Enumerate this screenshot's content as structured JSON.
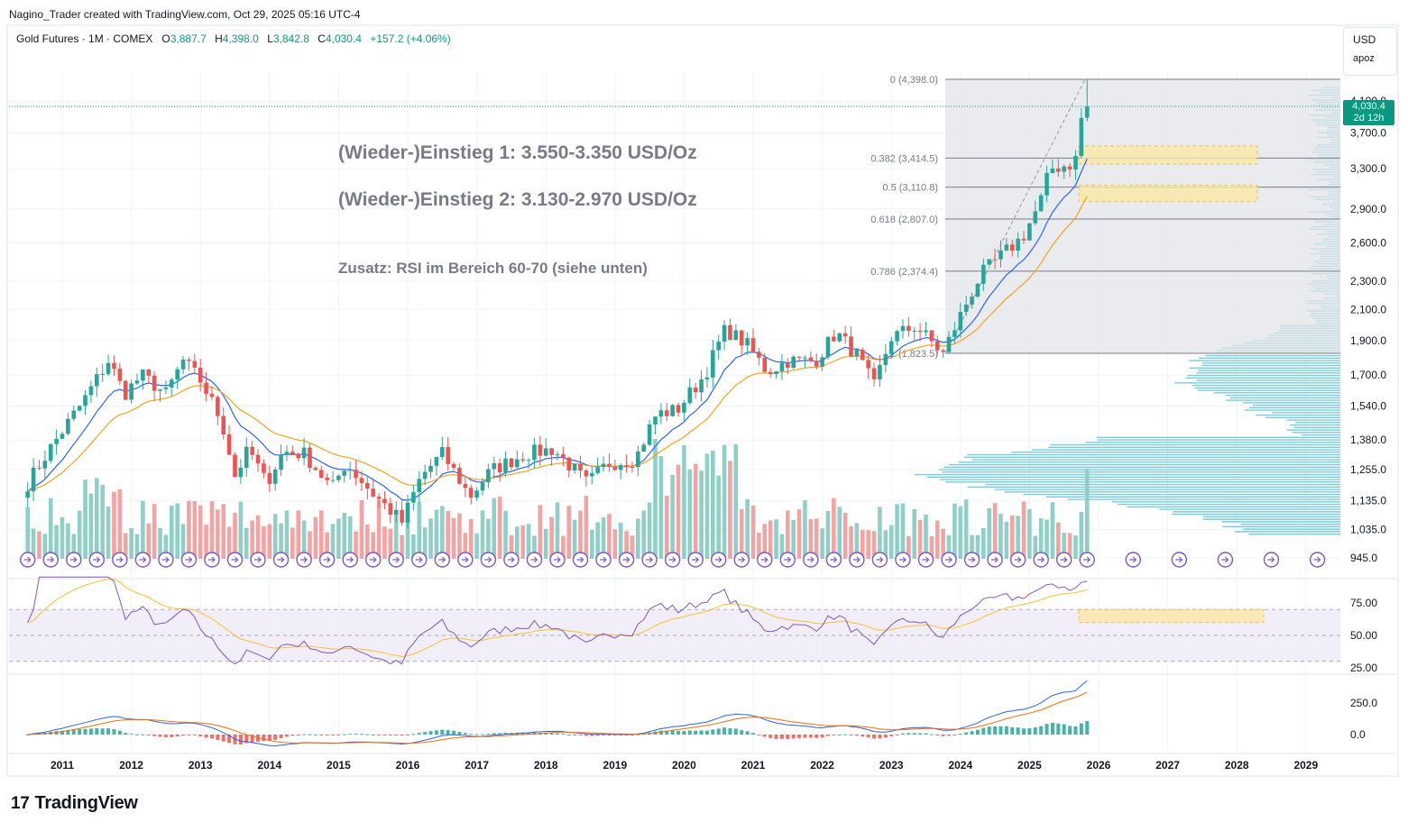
{
  "header": {
    "attribution": "Nagino_Trader created with TradingView.com, Oct 29, 2025 05:16 UTC-4",
    "symbol": "Gold Futures · 1M · COMEX",
    "o_label": "O",
    "o_value": "3,887.7",
    "h_label": "H",
    "h_value": "4,398.0",
    "l_label": "L",
    "l_value": "3,842.8",
    "c_label": "C",
    "c_value": "4,030.4",
    "change": "+157.2 (+4.06%)"
  },
  "price_scale": {
    "currency": "USD",
    "mode": "apoz",
    "last_price": "4,030.4",
    "countdown": "2d 12h"
  },
  "footer": {
    "brand": "TradingView"
  },
  "colors": {
    "up": "#26a69a",
    "down": "#ef5350",
    "volume_up": "#90cfc8",
    "volume_down": "#f4a3a3",
    "ema_fast": "#2962ff",
    "ema_slow": "#f7a21b",
    "volume_profile": "#5ec5d6",
    "rsi_line": "#7e57c2",
    "rsi_ma": "#fbc02d",
    "macd_line": "#2962ff",
    "signal_line": "#ff6d00",
    "zone_fill": "#fbe9a6",
    "zone_border": "#e8b83a"
  },
  "chart_data": [
    {
      "type": "candlestick",
      "title": "Gold Futures · 1M · COMEX",
      "timeframe": "1M",
      "x_axis_labels": [
        "2011",
        "2012",
        "2013",
        "2014",
        "2015",
        "2016",
        "2017",
        "2018",
        "2019",
        "2020",
        "2021",
        "2022",
        "2023",
        "2024",
        "2025",
        "2026",
        "2027",
        "2028",
        "2029"
      ],
      "y_axis_labels": [
        "4,100.0",
        "3,700.0",
        "3,300.0",
        "2,900.0",
        "2,600.0",
        "2,300.0",
        "2,100.0",
        "1,900.0",
        "1,700.0",
        "1,540.0",
        "1,380.0",
        "1,255.0",
        "1,135.0",
        "1,035.0",
        "945.0"
      ],
      "y_scale": "log",
      "ylim": [
        945,
        4398
      ],
      "close_keypoints": [
        {
          "date": "2010.5",
          "close": 1200
        },
        {
          "date": "2011.0",
          "close": 1420
        },
        {
          "date": "2011.3",
          "close": 1560
        },
        {
          "date": "2011.67",
          "close": 1780
        },
        {
          "date": "2011.9",
          "close": 1600
        },
        {
          "date": "2012.15",
          "close": 1700
        },
        {
          "date": "2012.5",
          "close": 1600
        },
        {
          "date": "2012.75",
          "close": 1780
        },
        {
          "date": "2013.0",
          "close": 1670
        },
        {
          "date": "2013.3",
          "close": 1470
        },
        {
          "date": "2013.5",
          "close": 1230
        },
        {
          "date": "2013.7",
          "close": 1340
        },
        {
          "date": "2013.95",
          "close": 1200
        },
        {
          "date": "2014.2",
          "close": 1330
        },
        {
          "date": "2014.5",
          "close": 1320
        },
        {
          "date": "2014.9",
          "close": 1180
        },
        {
          "date": "2015.1",
          "close": 1280
        },
        {
          "date": "2015.5",
          "close": 1160
        },
        {
          "date": "2015.92",
          "close": 1060
        },
        {
          "date": "2016.2",
          "close": 1230
        },
        {
          "date": "2016.5",
          "close": 1320
        },
        {
          "date": "2016.9",
          "close": 1150
        },
        {
          "date": "2017.2",
          "close": 1250
        },
        {
          "date": "2017.7",
          "close": 1320
        },
        {
          "date": "2018.1",
          "close": 1340
        },
        {
          "date": "2018.6",
          "close": 1200
        },
        {
          "date": "2018.9",
          "close": 1280
        },
        {
          "date": "2019.3",
          "close": 1300
        },
        {
          "date": "2019.6",
          "close": 1500
        },
        {
          "date": "2019.9",
          "close": 1520
        },
        {
          "date": "2020.3",
          "close": 1700
        },
        {
          "date": "2020.6",
          "close": 1970
        },
        {
          "date": "2020.9",
          "close": 1880
        },
        {
          "date": "2021.2",
          "close": 1720
        },
        {
          "date": "2021.5",
          "close": 1780
        },
        {
          "date": "2021.9",
          "close": 1780
        },
        {
          "date": "2022.2",
          "close": 1950
        },
        {
          "date": "2022.5",
          "close": 1810
        },
        {
          "date": "2022.75",
          "close": 1640
        },
        {
          "date": "2023.0",
          "close": 1920
        },
        {
          "date": "2023.35",
          "close": 1990
        },
        {
          "date": "2023.75",
          "close": 1820
        },
        {
          "date": "2024.0",
          "close": 2060
        },
        {
          "date": "2024.3",
          "close": 2350
        },
        {
          "date": "2024.6",
          "close": 2500
        },
        {
          "date": "2024.9",
          "close": 2650
        },
        {
          "date": "2025.15",
          "close": 2950
        },
        {
          "date": "2025.3",
          "close": 3300
        },
        {
          "date": "2025.6",
          "close": 3350
        },
        {
          "date": "2025.7",
          "close": 3440
        },
        {
          "date": "2025.75",
          "close": 3880
        },
        {
          "date": "2025.83",
          "close": 4030.4
        }
      ],
      "last_candle": {
        "open": 3887.7,
        "high": 4398.0,
        "low": 3842.8,
        "close": 4030.4,
        "change": 157.2,
        "change_pct": 4.06
      },
      "fibonacci_retracement": [
        {
          "level": "0",
          "price": "4,398.0"
        },
        {
          "level": "0.382",
          "price": "3,414.5"
        },
        {
          "level": "0.5",
          "price": "3,110.8"
        },
        {
          "level": "0.618",
          "price": "2,807.0"
        },
        {
          "level": "0.786",
          "price": "2,374.4"
        },
        {
          "level": "1",
          "price": "1,823.5"
        }
      ],
      "zones": [
        {
          "name": "entry_1",
          "from": 3350,
          "to": 3550
        },
        {
          "name": "entry_2",
          "from": 2970,
          "to": 3130
        }
      ],
      "annotations": [
        "(Wieder-)Einstieg 1: 3.550-3.350 USD/Oz",
        "(Wieder-)Einstieg 2: 3.130-2.970 USD/Oz",
        "Zusatz: RSI im Bereich 60-70 (siehe unten)"
      ],
      "fib_labels_display": [
        "0 (4,398.0)",
        "0.382 (3,414.5)",
        "0.5 (3,110.8)",
        "0.618 (2,807.0)",
        "0.786 (2,374.4)",
        "1 (1,823.5)"
      ]
    },
    {
      "type": "line",
      "name": "RSI",
      "y_axis_labels": [
        "75.00",
        "50.00",
        "25.00"
      ],
      "ylim": [
        25,
        95
      ],
      "bands": [
        30,
        50,
        70
      ],
      "highlight_zone": {
        "from": 60,
        "to": 70
      },
      "last_value_approx": 90
    },
    {
      "type": "line",
      "name": "MACD",
      "y_axis_labels": [
        "250.0",
        "0.0"
      ],
      "ylim": [
        -60,
        380
      ]
    }
  ]
}
